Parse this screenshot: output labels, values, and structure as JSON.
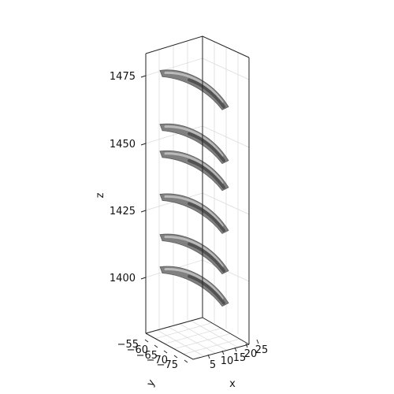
{
  "chart_data": {
    "type": "surface3d",
    "title": "",
    "axes": {
      "x": {
        "label": "x",
        "ticks": [
          "5",
          "10",
          "15",
          "20",
          "25"
        ]
      },
      "y": {
        "label": "y",
        "ticks": [
          "−55",
          "−60",
          "−65",
          "−70",
          "−75"
        ]
      },
      "z": {
        "label": "z",
        "ticks": [
          "1400",
          "1425",
          "1450",
          "1475"
        ],
        "range": [
          1380,
          1485
        ]
      }
    },
    "grid": true,
    "surface_color": "#808080",
    "blades": [
      {
        "z_center": 1401
      },
      {
        "z_center": 1413
      },
      {
        "z_center": 1428
      },
      {
        "z_center": 1444
      },
      {
        "z_center": 1454
      },
      {
        "z_center": 1474
      }
    ]
  }
}
